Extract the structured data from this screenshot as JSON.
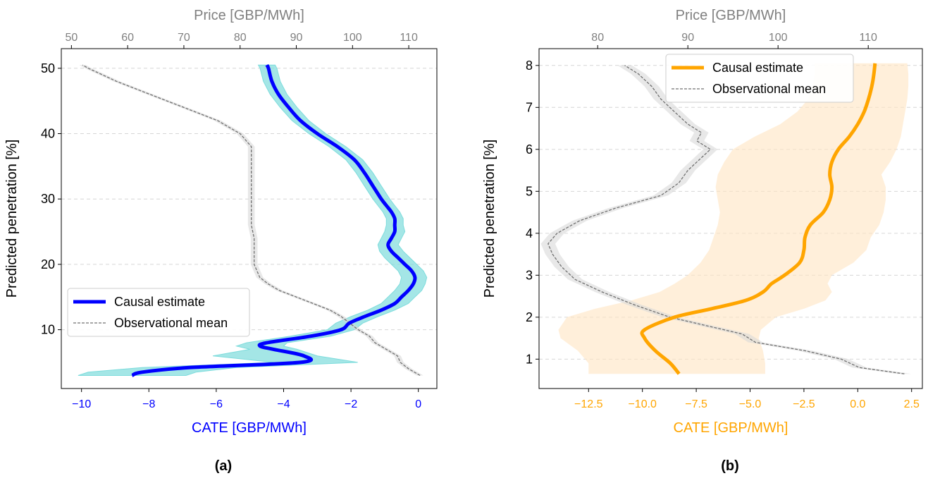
{
  "panel_labels": [
    "(a)",
    "(b)"
  ],
  "chart_data": [
    {
      "type": "line",
      "panel": "(a)",
      "xlabel_bottom": "CATE [GBP/MWh]",
      "xlabel_top": "Price [GBP/MWh]",
      "ylabel": "Predicted penetration [%]",
      "xlim_bottom": [
        -10.6,
        0.55
      ],
      "xlim_top": [
        48.2,
        115
      ],
      "ylim": [
        1,
        53
      ],
      "xticks_bottom": [
        -10,
        -8,
        -6,
        -4,
        -2,
        0
      ],
      "xticklabels_bottom": [
        "−10",
        "−8",
        "−6",
        "−4",
        "−2",
        "0"
      ],
      "xticks_top": [
        50,
        60,
        70,
        80,
        90,
        100,
        110
      ],
      "yticks": [
        10,
        20,
        30,
        40,
        50
      ],
      "grid": "horizontal-dashed",
      "legend": {
        "placement": "center-left",
        "entries": [
          "Causal estimate",
          "Observational mean"
        ]
      },
      "colors": {
        "causal": "#0000ff",
        "band": "#7ddcdc",
        "observational": "#707070",
        "obs_band": "#d9d9d9",
        "bottom_axis": "#0000ff",
        "top_axis": "#808080"
      },
      "series": [
        {
          "name": "Causal estimate",
          "axis": "bottom",
          "y": [
            3,
            3.5,
            4.2,
            5,
            6,
            7,
            7.5,
            8,
            9,
            10,
            11,
            12,
            13,
            14,
            15,
            16,
            17,
            18,
            19,
            20,
            21,
            22,
            23,
            24,
            25,
            26,
            27,
            28,
            29,
            30,
            32,
            34,
            36,
            38,
            40,
            42,
            44,
            46,
            48,
            50,
            50.5
          ],
          "x": [
            -8.5,
            -8.2,
            -6.8,
            -3.5,
            -3.4,
            -4.3,
            -4.7,
            -4.5,
            -3.2,
            -2.3,
            -2.05,
            -1.6,
            -1.1,
            -0.7,
            -0.5,
            -0.3,
            -0.15,
            -0.1,
            -0.2,
            -0.4,
            -0.6,
            -0.8,
            -0.9,
            -0.8,
            -0.7,
            -0.7,
            -0.7,
            -0.8,
            -0.95,
            -1.1,
            -1.35,
            -1.6,
            -1.9,
            -2.4,
            -3.0,
            -3.5,
            -3.85,
            -4.15,
            -4.35,
            -4.45,
            -4.5
          ],
          "lower": [
            -10.1,
            -9.8,
            -8.2,
            -4.3,
            -6.1,
            -5.0,
            -5.4,
            -5.1,
            -3.8,
            -2.7,
            -2.45,
            -2.0,
            -1.5,
            -1.1,
            -0.9,
            -0.7,
            -0.55,
            -0.5,
            -0.6,
            -0.8,
            -1.0,
            -1.15,
            -1.2,
            -1.1,
            -1.0,
            -0.95,
            -0.95,
            -1.05,
            -1.2,
            -1.35,
            -1.6,
            -1.85,
            -2.15,
            -2.65,
            -3.25,
            -3.75,
            -4.1,
            -4.4,
            -4.6,
            -4.7,
            -4.75
          ],
          "upper": [
            -6.9,
            -6.6,
            -5.4,
            -1.8,
            -3.0,
            -3.6,
            -4.0,
            -3.9,
            -2.6,
            -1.9,
            -1.65,
            -1.2,
            -0.7,
            -0.3,
            -0.1,
            0.1,
            0.2,
            0.25,
            0.15,
            -0.05,
            -0.25,
            -0.45,
            -0.6,
            -0.5,
            -0.4,
            -0.45,
            -0.45,
            -0.55,
            -0.7,
            -0.85,
            -1.1,
            -1.35,
            -1.65,
            -2.15,
            -2.75,
            -3.25,
            -3.6,
            -3.9,
            -4.1,
            -4.2,
            -4.25
          ]
        },
        {
          "name": "Observational mean",
          "axis": "top",
          "y": [
            3,
            4,
            5,
            6,
            7,
            8,
            9,
            10,
            11,
            12,
            13,
            14,
            15,
            16,
            17,
            18,
            19,
            20,
            22,
            24,
            26,
            28,
            30,
            32,
            34,
            36,
            38,
            40,
            42,
            44,
            46,
            48,
            50,
            50.5
          ],
          "x": [
            112,
            110,
            108.5,
            108,
            106,
            104,
            103,
            101,
            99.5,
            98,
            96,
            93,
            90,
            87,
            85,
            83.5,
            83,
            82.5,
            82.5,
            82.5,
            82,
            82,
            82,
            82,
            82,
            82,
            82,
            80,
            76,
            70,
            64,
            58,
            53,
            52
          ],
          "band_halfwidth": 0.6
        }
      ]
    },
    {
      "type": "line",
      "panel": "(b)",
      "xlabel_bottom": "CATE [GBP/MWh]",
      "xlabel_top": "Price [GBP/MWh]",
      "ylabel": "Predicted penetration [%]",
      "xlim_bottom": [
        -14.8,
        3.0
      ],
      "xlim_top": [
        73.5,
        116
      ],
      "ylim": [
        0.3,
        8.4
      ],
      "xticks_bottom": [
        -12.5,
        -10,
        -7.5,
        -5,
        -2.5,
        0,
        2.5
      ],
      "xticklabels_bottom": [
        "−12.5",
        "−10.0",
        "−7.5",
        "−5.0",
        "−2.5",
        "0.0",
        "2.5"
      ],
      "xticks_top": [
        80,
        90,
        100,
        110
      ],
      "yticks": [
        1,
        2,
        3,
        4,
        5,
        6,
        7,
        8
      ],
      "grid": "horizontal-dashed",
      "legend": {
        "placement": "top-center",
        "entries": [
          "Causal estimate",
          "Observational mean"
        ]
      },
      "colors": {
        "causal": "#ffa500",
        "band": "#ffe5c2",
        "observational": "#707070",
        "obs_band": "#d9d9d9",
        "bottom_axis": "#ffa500",
        "top_axis": "#808080"
      },
      "series": [
        {
          "name": "Causal estimate",
          "axis": "bottom",
          "y": [
            0.65,
            0.9,
            1.2,
            1.5,
            1.7,
            2.0,
            2.2,
            2.4,
            2.6,
            2.8,
            3.0,
            3.3,
            3.6,
            3.9,
            4.2,
            4.5,
            4.8,
            5.1,
            5.4,
            5.7,
            6.0,
            6.3,
            6.6,
            6.9,
            7.2,
            7.5,
            7.8,
            8.05
          ],
          "x": [
            -8.3,
            -8.7,
            -9.4,
            -9.9,
            -9.9,
            -8.5,
            -6.8,
            -5.2,
            -4.4,
            -4.0,
            -3.4,
            -2.7,
            -2.5,
            -2.45,
            -2.2,
            -1.6,
            -1.3,
            -1.2,
            -1.3,
            -1.2,
            -0.9,
            -0.4,
            0.0,
            0.3,
            0.5,
            0.65,
            0.75,
            0.8
          ],
          "lower": [
            -12.5,
            -12.5,
            -13.0,
            -13.8,
            -13.9,
            -13.5,
            -12.2,
            -10.5,
            -9.2,
            -8.5,
            -7.9,
            -7.3,
            -6.9,
            -6.7,
            -6.5,
            -6.4,
            -6.5,
            -6.6,
            -6.5,
            -6.2,
            -5.8,
            -4.8,
            -3.6,
            -2.8,
            -2.3,
            -2.1,
            -2.0,
            -2.0
          ],
          "upper": [
            -4.3,
            -4.3,
            -4.4,
            -4.6,
            -4.5,
            -3.8,
            -2.5,
            -1.5,
            -1.2,
            -1.4,
            -1.2,
            -0.2,
            0.4,
            0.6,
            1.0,
            1.2,
            1.3,
            1.3,
            1.1,
            1.5,
            1.8,
            2.0,
            2.1,
            2.2,
            2.3,
            2.35,
            2.35,
            2.3
          ]
        },
        {
          "name": "Observational mean",
          "axis": "top",
          "y": [
            0.65,
            0.8,
            1.0,
            1.2,
            1.4,
            1.6,
            1.8,
            2.0,
            2.3,
            2.6,
            2.9,
            3.2,
            3.5,
            3.75,
            4.0,
            4.3,
            4.6,
            4.9,
            5.2,
            5.5,
            5.8,
            6.0,
            6.2,
            6.4,
            6.6,
            6.9,
            7.2,
            7.5,
            7.8,
            8.0
          ],
          "x": [
            114,
            109,
            107,
            103,
            97.5,
            96,
            92,
            88,
            84,
            80.5,
            77.5,
            76,
            75,
            74.5,
            75.5,
            78,
            82,
            87,
            89,
            90,
            91.5,
            92.5,
            91,
            91.5,
            90,
            88.5,
            87,
            86,
            84.5,
            83
          ],
          "band_halfwidth": 0.8
        }
      ]
    }
  ]
}
